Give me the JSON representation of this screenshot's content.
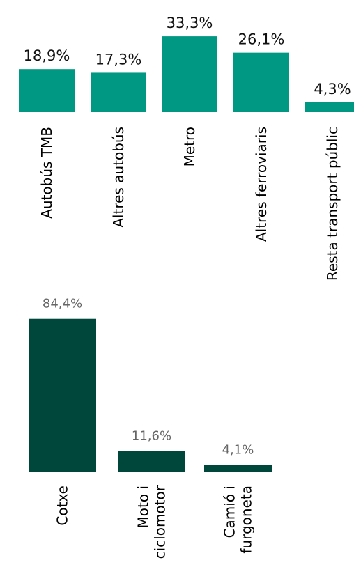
{
  "colors": {
    "top_bar": "#009882",
    "bottom_bar": "#00473b",
    "top_value_text": "#111111",
    "bottom_value_text": "#666666",
    "label_text": "#000000"
  },
  "chart_data": [
    {
      "type": "bar",
      "categories": [
        "Autobús TMB",
        "Altres autobús",
        "Metro",
        "Altres ferroviaris",
        "Resta transport públic"
      ],
      "values": [
        18.9,
        17.3,
        33.3,
        26.1,
        4.3
      ],
      "value_labels": [
        "18,9%",
        "17,3%",
        "33,3%",
        "26,1%",
        "4,3%"
      ],
      "unit": "%",
      "grid": false,
      "legend": "none"
    },
    {
      "type": "bar",
      "categories": [
        [
          "Cotxe"
        ],
        [
          "Moto i",
          "ciclomotor"
        ],
        [
          "Camió i",
          "furgoneta"
        ]
      ],
      "values": [
        84.4,
        11.6,
        4.1
      ],
      "value_labels": [
        "84,4%",
        "11,6%",
        "4,1%"
      ],
      "unit": "%",
      "grid": false,
      "legend": "none"
    }
  ]
}
